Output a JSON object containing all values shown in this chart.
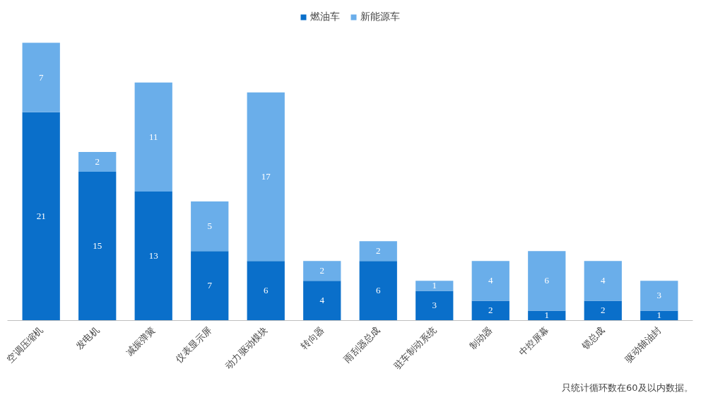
{
  "chart_data": {
    "type": "bar",
    "stacked": true,
    "data_labels": true,
    "legend": "top",
    "grid": false,
    "categories": [
      "空调压缩机",
      "发电机",
      "减振弹簧",
      "仪表显示屏",
      "动力驱动模块",
      "转向器",
      "雨刮器总成",
      "驻车制动系统",
      "制动器",
      "中控屏幕",
      "锁总成",
      "驱动轴油封"
    ],
    "series": [
      {
        "name": "燃油车",
        "color": "#0a6fca",
        "values": [
          21,
          15,
          13,
          7,
          6,
          4,
          6,
          3,
          2,
          1,
          2,
          1
        ]
      },
      {
        "name": "新能源车",
        "color": "#6aaeea",
        "values": [
          7,
          2,
          11,
          5,
          17,
          2,
          2,
          1,
          4,
          6,
          4,
          3
        ]
      }
    ],
    "annotations": [
      "只统计循环数在60及以内数据。"
    ]
  }
}
